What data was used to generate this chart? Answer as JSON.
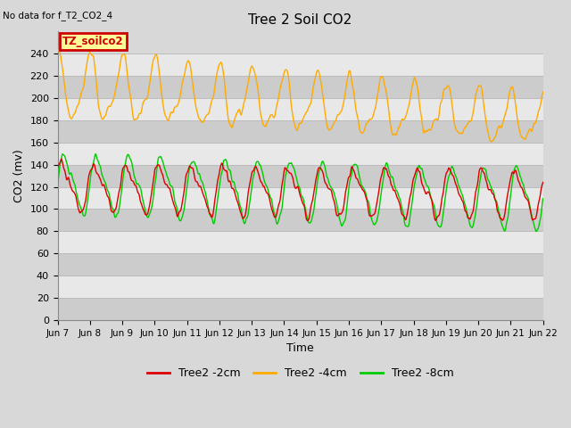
{
  "title": "Tree 2 Soil CO2",
  "subtitle": "No data for f_T2_CO2_4",
  "xlabel": "Time",
  "ylabel": "CO2 (mv)",
  "ylim": [
    0,
    260
  ],
  "yticks": [
    0,
    20,
    40,
    60,
    80,
    100,
    120,
    140,
    160,
    180,
    200,
    220,
    240
  ],
  "x_labels": [
    "Jun 7",
    "Jun 8",
    "Jun 9",
    "Jun 10",
    "Jun 11",
    "Jun 12",
    "Jun 13",
    "Jun 14",
    "Jun 15",
    "Jun 16",
    "Jun 17",
    "Jun 18",
    "Jun 19",
    "Jun 20",
    "Jun 21",
    "Jun 22"
  ],
  "bg_color": "#d8d8d8",
  "plot_bg_color": "#d8d8d8",
  "stripe_light": "#e8e8e8",
  "stripe_dark": "#cccccc",
  "legend_box_color": "#ffff99",
  "legend_box_border": "#cc0000",
  "legend_box_text": "TZ_soilco2",
  "line_2cm_color": "#dd0000",
  "line_4cm_color": "#ffaa00",
  "line_8cm_color": "#00cc00",
  "grid_color": "#bbbbbb",
  "n_points": 800,
  "figsize": [
    6.4,
    4.8
  ],
  "dpi": 100
}
